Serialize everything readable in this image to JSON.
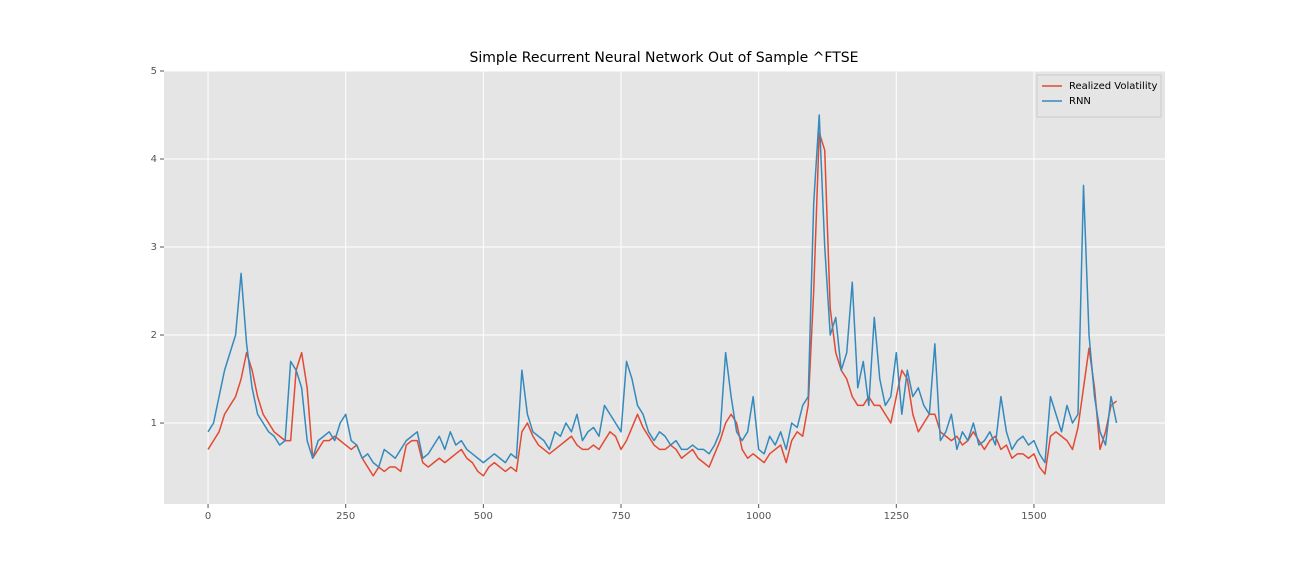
{
  "chart_data": {
    "type": "line",
    "title": "Simple Recurrent Neural Network Out of Sample ^FTSE",
    "x": [
      0,
      10,
      20,
      30,
      40,
      50,
      60,
      70,
      80,
      90,
      100,
      110,
      120,
      130,
      140,
      150,
      160,
      170,
      180,
      190,
      200,
      210,
      220,
      230,
      240,
      250,
      260,
      270,
      280,
      290,
      300,
      310,
      320,
      330,
      340,
      350,
      360,
      370,
      380,
      390,
      400,
      410,
      420,
      430,
      440,
      450,
      460,
      470,
      480,
      490,
      500,
      510,
      520,
      530,
      540,
      550,
      560,
      570,
      580,
      590,
      600,
      610,
      620,
      630,
      640,
      650,
      660,
      670,
      680,
      690,
      700,
      710,
      720,
      730,
      740,
      750,
      760,
      770,
      780,
      790,
      800,
      810,
      820,
      830,
      840,
      850,
      860,
      870,
      880,
      890,
      900,
      910,
      920,
      930,
      940,
      950,
      960,
      970,
      980,
      990,
      1000,
      1010,
      1020,
      1030,
      1040,
      1050,
      1060,
      1070,
      1080,
      1090,
      1100,
      1110,
      1120,
      1130,
      1140,
      1150,
      1160,
      1170,
      1180,
      1190,
      1200,
      1210,
      1220,
      1230,
      1240,
      1250,
      1260,
      1270,
      1280,
      1290,
      1300,
      1310,
      1320,
      1330,
      1340,
      1350,
      1360,
      1370,
      1380,
      1390,
      1400,
      1410,
      1420,
      1430,
      1440,
      1450,
      1460,
      1470,
      1480,
      1490,
      1500,
      1510,
      1520,
      1530,
      1540,
      1550,
      1560,
      1570,
      1580,
      1590,
      1600,
      1610,
      1620,
      1630,
      1640,
      1650
    ],
    "series": [
      {
        "name": "Realized Volatility",
        "color": "#e24a33",
        "values": [
          0.7,
          0.8,
          0.9,
          1.1,
          1.2,
          1.3,
          1.5,
          1.8,
          1.6,
          1.3,
          1.1,
          1.0,
          0.9,
          0.85,
          0.8,
          0.8,
          1.6,
          1.8,
          1.4,
          0.6,
          0.7,
          0.8,
          0.8,
          0.85,
          0.8,
          0.75,
          0.7,
          0.75,
          0.6,
          0.5,
          0.4,
          0.5,
          0.45,
          0.5,
          0.5,
          0.45,
          0.75,
          0.8,
          0.8,
          0.55,
          0.5,
          0.55,
          0.6,
          0.55,
          0.6,
          0.65,
          0.7,
          0.6,
          0.55,
          0.45,
          0.4,
          0.5,
          0.55,
          0.5,
          0.45,
          0.5,
          0.45,
          0.9,
          1.0,
          0.85,
          0.75,
          0.7,
          0.65,
          0.7,
          0.75,
          0.8,
          0.85,
          0.75,
          0.7,
          0.7,
          0.75,
          0.7,
          0.8,
          0.9,
          0.85,
          0.7,
          0.8,
          0.95,
          1.1,
          0.95,
          0.85,
          0.75,
          0.7,
          0.7,
          0.75,
          0.7,
          0.6,
          0.65,
          0.7,
          0.6,
          0.55,
          0.5,
          0.65,
          0.8,
          1.0,
          1.1,
          1.0,
          0.7,
          0.6,
          0.65,
          0.6,
          0.55,
          0.65,
          0.7,
          0.75,
          0.55,
          0.8,
          0.9,
          0.85,
          1.2,
          2.5,
          4.3,
          4.1,
          2.3,
          1.8,
          1.6,
          1.5,
          1.3,
          1.2,
          1.2,
          1.3,
          1.2,
          1.2,
          1.1,
          1.0,
          1.3,
          1.6,
          1.5,
          1.1,
          0.9,
          1.0,
          1.1,
          1.1,
          0.9,
          0.85,
          0.8,
          0.85,
          0.75,
          0.8,
          0.9,
          0.8,
          0.7,
          0.8,
          0.85,
          0.7,
          0.75,
          0.6,
          0.65,
          0.65,
          0.6,
          0.65,
          0.5,
          0.42,
          0.85,
          0.9,
          0.85,
          0.8,
          0.7,
          0.95,
          1.4,
          1.85,
          1.4,
          0.7,
          0.9,
          1.2,
          1.25
        ]
      },
      {
        "name": "RNN",
        "color": "#348abd",
        "values": [
          0.9,
          1.0,
          1.3,
          1.6,
          1.8,
          2.0,
          2.7,
          1.9,
          1.4,
          1.1,
          1.0,
          0.9,
          0.85,
          0.75,
          0.8,
          1.7,
          1.6,
          1.4,
          0.8,
          0.6,
          0.8,
          0.85,
          0.9,
          0.8,
          1.0,
          1.1,
          0.8,
          0.75,
          0.6,
          0.65,
          0.55,
          0.5,
          0.7,
          0.65,
          0.6,
          0.7,
          0.8,
          0.85,
          0.9,
          0.6,
          0.65,
          0.75,
          0.85,
          0.7,
          0.9,
          0.75,
          0.8,
          0.7,
          0.65,
          0.6,
          0.55,
          0.6,
          0.65,
          0.6,
          0.55,
          0.65,
          0.6,
          1.6,
          1.1,
          0.9,
          0.85,
          0.8,
          0.7,
          0.9,
          0.85,
          1.0,
          0.9,
          1.1,
          0.8,
          0.9,
          0.95,
          0.85,
          1.2,
          1.1,
          1.0,
          0.9,
          1.7,
          1.5,
          1.2,
          1.1,
          0.9,
          0.8,
          0.9,
          0.85,
          0.75,
          0.8,
          0.7,
          0.7,
          0.75,
          0.7,
          0.7,
          0.65,
          0.75,
          0.9,
          1.8,
          1.3,
          0.9,
          0.8,
          0.9,
          1.3,
          0.7,
          0.65,
          0.85,
          0.75,
          0.9,
          0.7,
          1.0,
          0.95,
          1.2,
          1.3,
          3.5,
          4.5,
          3.0,
          2.0,
          2.2,
          1.6,
          1.8,
          2.6,
          1.4,
          1.7,
          1.2,
          2.2,
          1.5,
          1.2,
          1.3,
          1.8,
          1.1,
          1.6,
          1.3,
          1.4,
          1.2,
          1.1,
          1.9,
          0.8,
          0.9,
          1.1,
          0.7,
          0.9,
          0.8,
          1.0,
          0.75,
          0.8,
          0.9,
          0.75,
          1.3,
          0.9,
          0.7,
          0.8,
          0.85,
          0.75,
          0.8,
          0.65,
          0.55,
          1.3,
          1.1,
          0.9,
          1.2,
          1.0,
          1.1,
          3.7,
          2.0,
          1.3,
          0.9,
          0.75,
          1.3,
          1.0
        ]
      }
    ],
    "xlim": [
      -80,
      1738
    ],
    "ylim": [
      0.08,
      5.0
    ],
    "xticks": [
      0,
      250,
      500,
      750,
      1000,
      1250,
      1500
    ],
    "yticks": [
      1,
      2,
      3,
      4,
      5
    ],
    "grid": true,
    "legend": "upper right"
  }
}
